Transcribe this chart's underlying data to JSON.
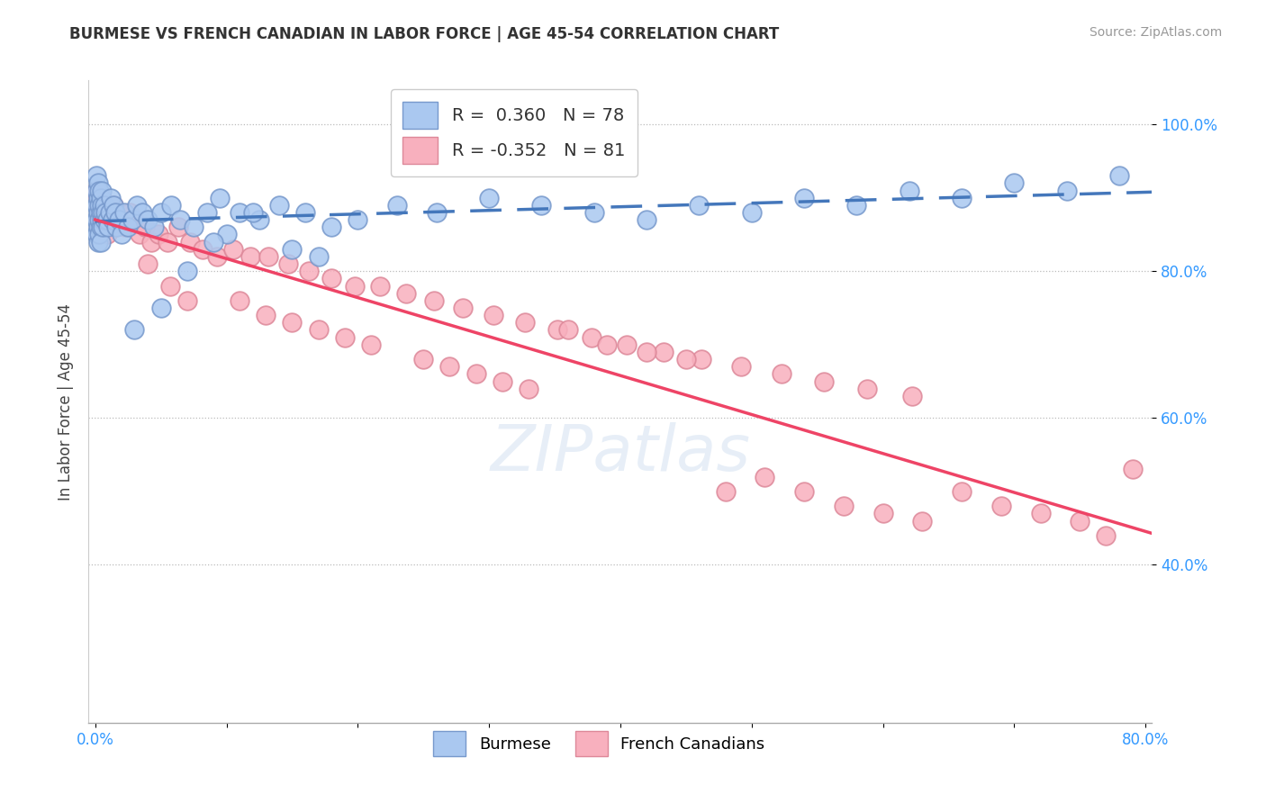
{
  "title": "BURMESE VS FRENCH CANADIAN IN LABOR FORCE | AGE 45-54 CORRELATION CHART",
  "source": "Source: ZipAtlas.com",
  "ylabel_label": "In Labor Force | Age 45-54",
  "x_min": 0.0,
  "x_max": 0.8,
  "y_min": 0.185,
  "y_max": 1.06,
  "y_ticks": [
    0.4,
    0.6,
    0.8,
    1.0
  ],
  "y_tick_labels": [
    "40.0%",
    "60.0%",
    "80.0%",
    "100.0%"
  ],
  "x_ticks": [
    0.0,
    0.1,
    0.2,
    0.3,
    0.4,
    0.5,
    0.6,
    0.7,
    0.8
  ],
  "x_tick_labels": [
    "0.0%",
    "",
    "",
    "",
    "",
    "",
    "",
    "",
    "80.0%"
  ],
  "burmese_color": "#aac8f0",
  "burmese_edge_color": "#7799cc",
  "french_color": "#f8b0be",
  "french_edge_color": "#dd8899",
  "burmese_line_color": "#4477bb",
  "french_line_color": "#ee4466",
  "R_burmese": 0.36,
  "N_burmese": 78,
  "R_french": -0.352,
  "N_french": 81,
  "legend_labels": [
    "Burmese",
    "French Canadians"
  ],
  "burmese_x": [
    0.001,
    0.001,
    0.001,
    0.001,
    0.001,
    0.002,
    0.002,
    0.002,
    0.002,
    0.002,
    0.003,
    0.003,
    0.003,
    0.003,
    0.004,
    0.004,
    0.004,
    0.004,
    0.005,
    0.005,
    0.005,
    0.006,
    0.006,
    0.007,
    0.007,
    0.008,
    0.009,
    0.01,
    0.011,
    0.012,
    0.013,
    0.014,
    0.015,
    0.016,
    0.018,
    0.02,
    0.022,
    0.025,
    0.028,
    0.032,
    0.036,
    0.04,
    0.045,
    0.05,
    0.058,
    0.065,
    0.075,
    0.085,
    0.095,
    0.11,
    0.125,
    0.14,
    0.16,
    0.18,
    0.2,
    0.23,
    0.26,
    0.3,
    0.34,
    0.38,
    0.42,
    0.46,
    0.5,
    0.54,
    0.58,
    0.62,
    0.66,
    0.7,
    0.74,
    0.78,
    0.1,
    0.15,
    0.05,
    0.03,
    0.07,
    0.09,
    0.12,
    0.17
  ],
  "burmese_y": [
    0.89,
    0.91,
    0.93,
    0.87,
    0.85,
    0.9,
    0.92,
    0.88,
    0.86,
    0.84,
    0.91,
    0.89,
    0.87,
    0.85,
    0.9,
    0.88,
    0.86,
    0.84,
    0.89,
    0.91,
    0.87,
    0.88,
    0.86,
    0.89,
    0.87,
    0.88,
    0.87,
    0.86,
    0.88,
    0.9,
    0.87,
    0.89,
    0.88,
    0.86,
    0.87,
    0.85,
    0.88,
    0.86,
    0.87,
    0.89,
    0.88,
    0.87,
    0.86,
    0.88,
    0.89,
    0.87,
    0.86,
    0.88,
    0.9,
    0.88,
    0.87,
    0.89,
    0.88,
    0.86,
    0.87,
    0.89,
    0.88,
    0.9,
    0.89,
    0.88,
    0.87,
    0.89,
    0.88,
    0.9,
    0.89,
    0.91,
    0.9,
    0.92,
    0.91,
    0.93,
    0.85,
    0.83,
    0.75,
    0.72,
    0.8,
    0.84,
    0.88,
    0.82
  ],
  "french_x": [
    0.001,
    0.002,
    0.003,
    0.003,
    0.004,
    0.005,
    0.006,
    0.007,
    0.008,
    0.009,
    0.01,
    0.012,
    0.014,
    0.016,
    0.018,
    0.02,
    0.023,
    0.026,
    0.03,
    0.034,
    0.038,
    0.043,
    0.048,
    0.055,
    0.063,
    0.072,
    0.082,
    0.093,
    0.105,
    0.118,
    0.132,
    0.147,
    0.163,
    0.18,
    0.198,
    0.217,
    0.237,
    0.258,
    0.28,
    0.303,
    0.327,
    0.352,
    0.378,
    0.405,
    0.433,
    0.462,
    0.492,
    0.523,
    0.555,
    0.588,
    0.622,
    0.057,
    0.07,
    0.11,
    0.13,
    0.15,
    0.17,
    0.19,
    0.21,
    0.25,
    0.27,
    0.29,
    0.31,
    0.33,
    0.36,
    0.39,
    0.42,
    0.45,
    0.48,
    0.51,
    0.54,
    0.57,
    0.6,
    0.63,
    0.66,
    0.69,
    0.72,
    0.75,
    0.77,
    0.79,
    0.04
  ],
  "french_y": [
    0.91,
    0.9,
    0.89,
    0.87,
    0.88,
    0.9,
    0.88,
    0.87,
    0.86,
    0.85,
    0.88,
    0.87,
    0.89,
    0.86,
    0.88,
    0.87,
    0.86,
    0.88,
    0.87,
    0.85,
    0.86,
    0.84,
    0.85,
    0.84,
    0.86,
    0.84,
    0.83,
    0.82,
    0.83,
    0.82,
    0.82,
    0.81,
    0.8,
    0.79,
    0.78,
    0.78,
    0.77,
    0.76,
    0.75,
    0.74,
    0.73,
    0.72,
    0.71,
    0.7,
    0.69,
    0.68,
    0.67,
    0.66,
    0.65,
    0.64,
    0.63,
    0.78,
    0.76,
    0.76,
    0.74,
    0.73,
    0.72,
    0.71,
    0.7,
    0.68,
    0.67,
    0.66,
    0.65,
    0.64,
    0.72,
    0.7,
    0.69,
    0.68,
    0.5,
    0.52,
    0.5,
    0.48,
    0.47,
    0.46,
    0.5,
    0.48,
    0.47,
    0.46,
    0.44,
    0.53,
    0.81
  ]
}
